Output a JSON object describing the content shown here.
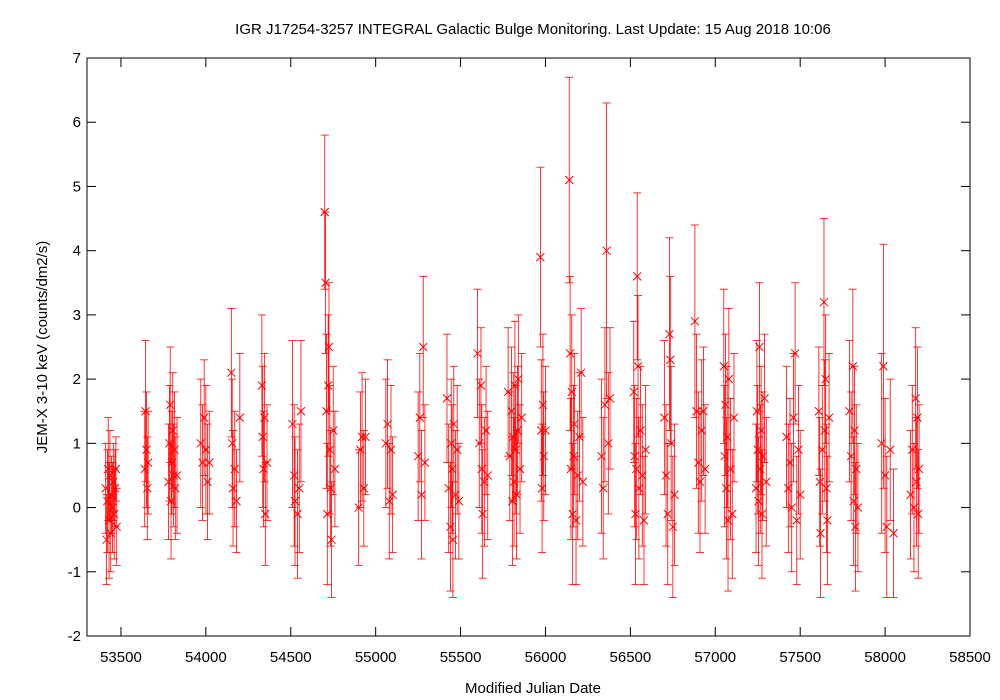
{
  "chart_data": {
    "type": "scatter",
    "title": "IGR J17254-3257   INTEGRAL Galactic Bulge Monitoring.  Last Update: 15 Aug 2018 10:06",
    "xlabel": "Modified Julian Date",
    "ylabel": "JEM-X 3-10 keV (counts/dm2/s)",
    "xlim": [
      53300,
      58500
    ],
    "ylim": [
      -2,
      7
    ],
    "xticks": [
      53500,
      54000,
      54500,
      55000,
      55500,
      56000,
      56500,
      57000,
      57500,
      58000,
      58500
    ],
    "yticks": [
      -2,
      -1,
      0,
      1,
      2,
      3,
      4,
      5,
      6,
      7
    ],
    "grid": false,
    "marker": "x",
    "error_bars": true,
    "colors": {
      "series": "#ff0000",
      "axes": "#000000"
    },
    "series": [
      {
        "points": [
          [
            53410,
            0.3,
            0.7
          ],
          [
            53415,
            -0.5,
            0.7
          ],
          [
            53420,
            0.1,
            0.8
          ],
          [
            53425,
            0.6,
            0.8
          ],
          [
            53430,
            -0.2,
            0.9
          ],
          [
            53435,
            0.5,
            0.7
          ],
          [
            53440,
            -0.4,
            0.6
          ],
          [
            53445,
            0.2,
            0.6
          ],
          [
            53450,
            0.0,
            0.7
          ],
          [
            53455,
            0.4,
            0.6
          ],
          [
            53460,
            -0.1,
            0.7
          ],
          [
            53465,
            0.3,
            0.6
          ],
          [
            53470,
            0.6,
            0.5
          ],
          [
            53475,
            -0.3,
            0.6
          ],
          [
            53640,
            0.6,
            0.9
          ],
          [
            53645,
            1.5,
            1.1
          ],
          [
            53650,
            0.9,
            0.9
          ],
          [
            53655,
            0.3,
            0.8
          ],
          [
            53660,
            0.7,
            0.8
          ],
          [
            53780,
            0.4,
            0.9
          ],
          [
            53785,
            1.0,
            0.9
          ],
          [
            53790,
            1.6,
            0.9
          ],
          [
            53795,
            0.1,
            0.9
          ],
          [
            53800,
            0.7,
            0.8
          ],
          [
            53805,
            1.2,
            0.9
          ],
          [
            53810,
            0.5,
            0.8
          ],
          [
            53815,
            0.9,
            0.9
          ],
          [
            53820,
            0.3,
            0.8
          ],
          [
            53830,
            0.5,
            0.9
          ],
          [
            53970,
            1.0,
            1.0
          ],
          [
            53980,
            0.7,
            0.9
          ],
          [
            53990,
            1.4,
            0.9
          ],
          [
            54000,
            0.9,
            1.0
          ],
          [
            54010,
            0.4,
            0.9
          ],
          [
            54020,
            0.7,
            0.8
          ],
          [
            54150,
            2.1,
            1.0
          ],
          [
            54155,
            1.0,
            1.0
          ],
          [
            54160,
            0.3,
            0.9
          ],
          [
            54170,
            0.6,
            0.9
          ],
          [
            54180,
            0.1,
            0.8
          ],
          [
            54200,
            1.4,
            1.0
          ],
          [
            54330,
            1.9,
            1.1
          ],
          [
            54335,
            1.1,
            1.1
          ],
          [
            54340,
            0.6,
            0.9
          ],
          [
            54345,
            1.4,
            1.0
          ],
          [
            54350,
            -0.1,
            0.8
          ],
          [
            54360,
            0.7,
            0.9
          ],
          [
            54510,
            1.3,
            1.3
          ],
          [
            54520,
            0.5,
            1.1
          ],
          [
            54525,
            0.1,
            1.0
          ],
          [
            54540,
            -0.1,
            1.0
          ],
          [
            54550,
            0.3,
            1.0
          ],
          [
            54560,
            1.5,
            1.1
          ],
          [
            54700,
            4.6,
            1.2
          ],
          [
            54705,
            3.5,
            1.1
          ],
          [
            54710,
            1.5,
            1.2
          ],
          [
            54715,
            -0.1,
            1.1
          ],
          [
            54720,
            1.9,
            1.1
          ],
          [
            54725,
            2.5,
            1.0
          ],
          [
            54730,
            0.9,
            1.0
          ],
          [
            54735,
            0.3,
            0.9
          ],
          [
            54740,
            -0.5,
            0.9
          ],
          [
            54750,
            1.2,
            1.0
          ],
          [
            54760,
            0.6,
            0.9
          ],
          [
            54900,
            0.0,
            0.9
          ],
          [
            54910,
            0.9,
            0.9
          ],
          [
            54920,
            1.1,
            1.0
          ],
          [
            54930,
            0.3,
            0.9
          ],
          [
            54940,
            1.1,
            0.9
          ],
          [
            55060,
            1.0,
            1.0
          ],
          [
            55070,
            1.3,
            1.0
          ],
          [
            55080,
            0.1,
            0.9
          ],
          [
            55090,
            0.9,
            1.0
          ],
          [
            55100,
            0.2,
            0.9
          ],
          [
            55250,
            0.8,
            1.0
          ],
          [
            55260,
            1.4,
            1.0
          ],
          [
            55270,
            0.2,
            1.0
          ],
          [
            55280,
            2.5,
            1.1
          ],
          [
            55290,
            0.7,
            0.9
          ],
          [
            55420,
            1.7,
            1.0
          ],
          [
            55430,
            0.3,
            1.0
          ],
          [
            55440,
            -0.3,
            1.0
          ],
          [
            55445,
            1.0,
            1.0
          ],
          [
            55450,
            0.6,
            1.0
          ],
          [
            55455,
            -0.5,
            0.9
          ],
          [
            55460,
            1.3,
            0.9
          ],
          [
            55470,
            0.2,
            1.0
          ],
          [
            55480,
            0.9,
            1.0
          ],
          [
            55490,
            0.1,
            0.9
          ],
          [
            55600,
            2.4,
            1.0
          ],
          [
            55610,
            1.0,
            1.0
          ],
          [
            55620,
            1.9,
            0.9
          ],
          [
            55625,
            0.6,
            1.0
          ],
          [
            55630,
            -0.1,
            1.0
          ],
          [
            55640,
            0.4,
            1.0
          ],
          [
            55650,
            1.2,
            1.0
          ],
          [
            55660,
            0.5,
            1.0
          ],
          [
            55780,
            1.8,
            1.0
          ],
          [
            55790,
            0.8,
            1.0
          ],
          [
            55800,
            1.5,
            1.0
          ],
          [
            55805,
            0.1,
            1.0
          ],
          [
            55810,
            1.1,
            1.0
          ],
          [
            55815,
            0.4,
            1.0
          ],
          [
            55820,
            1.9,
            1.0
          ],
          [
            55825,
            0.9,
            1.0
          ],
          [
            55830,
            0.2,
            1.0
          ],
          [
            55835,
            1.2,
            1.0
          ],
          [
            55840,
            2.0,
            1.0
          ],
          [
            55850,
            0.6,
            1.0
          ],
          [
            55860,
            1.4,
            1.0
          ],
          [
            55970,
            3.9,
            1.4
          ],
          [
            55975,
            1.2,
            1.1
          ],
          [
            55980,
            0.3,
            1.0
          ],
          [
            55985,
            1.6,
            1.1
          ],
          [
            55990,
            0.8,
            1.0
          ],
          [
            56000,
            1.2,
            1.0
          ],
          [
            56140,
            5.1,
            1.6
          ],
          [
            56145,
            2.4,
            1.2
          ],
          [
            56150,
            0.6,
            1.1
          ],
          [
            56155,
            1.8,
            1.2
          ],
          [
            56160,
            -0.1,
            1.1
          ],
          [
            56165,
            0.8,
            1.1
          ],
          [
            56170,
            1.3,
            1.1
          ],
          [
            56180,
            -0.2,
            1.0
          ],
          [
            56190,
            0.5,
            1.0
          ],
          [
            56200,
            1.1,
            1.0
          ],
          [
            56210,
            2.1,
            1.0
          ],
          [
            56220,
            0.4,
            1.0
          ],
          [
            56330,
            0.8,
            1.2
          ],
          [
            56340,
            0.3,
            1.1
          ],
          [
            56350,
            1.6,
            1.2
          ],
          [
            56360,
            4.0,
            2.3
          ],
          [
            56370,
            1.0,
            1.1
          ],
          [
            56380,
            1.7,
            1.1
          ],
          [
            56520,
            1.8,
            1.1
          ],
          [
            56525,
            0.8,
            1.1
          ],
          [
            56530,
            -0.1,
            1.1
          ],
          [
            56535,
            0.6,
            1.1
          ],
          [
            56540,
            3.6,
            1.3
          ],
          [
            56545,
            2.2,
            1.1
          ],
          [
            56550,
            0.3,
            1.1
          ],
          [
            56560,
            1.2,
            1.0
          ],
          [
            56570,
            0.5,
            1.1
          ],
          [
            56580,
            -0.2,
            1.0
          ],
          [
            56590,
            0.9,
            1.0
          ],
          [
            56700,
            1.4,
            1.2
          ],
          [
            56710,
            0.5,
            1.1
          ],
          [
            56720,
            -0.1,
            1.1
          ],
          [
            56730,
            2.7,
            1.5
          ],
          [
            56735,
            2.3,
            1.3
          ],
          [
            56740,
            1.0,
            1.2
          ],
          [
            56750,
            -0.3,
            1.1
          ],
          [
            56760,
            0.2,
            1.1
          ],
          [
            56880,
            2.9,
            1.5
          ],
          [
            56890,
            1.5,
            1.2
          ],
          [
            56900,
            0.7,
            1.1
          ],
          [
            56910,
            0.4,
            1.1
          ],
          [
            56920,
            1.2,
            1.1
          ],
          [
            56930,
            1.5,
            1.0
          ],
          [
            56940,
            0.6,
            1.0
          ],
          [
            57050,
            2.2,
            1.2
          ],
          [
            57055,
            0.8,
            1.1
          ],
          [
            57060,
            1.6,
            1.1
          ],
          [
            57065,
            0.3,
            1.1
          ],
          [
            57070,
            1.1,
            1.1
          ],
          [
            57075,
            -0.2,
            1.1
          ],
          [
            57080,
            2.0,
            1.1
          ],
          [
            57090,
            0.6,
            1.1
          ],
          [
            57100,
            -0.1,
            1.0
          ],
          [
            57110,
            1.4,
            1.0
          ],
          [
            57240,
            0.3,
            1.0
          ],
          [
            57245,
            1.5,
            1.1
          ],
          [
            57250,
            0.9,
            1.0
          ],
          [
            57255,
            0.1,
            1.0
          ],
          [
            57260,
            2.5,
            1.0
          ],
          [
            57265,
            0.6,
            1.0
          ],
          [
            57270,
            1.2,
            1.0
          ],
          [
            57275,
            -0.1,
            1.0
          ],
          [
            57280,
            0.8,
            1.0
          ],
          [
            57290,
            1.7,
            1.0
          ],
          [
            57300,
            0.4,
            1.0
          ],
          [
            57420,
            1.1,
            1.1
          ],
          [
            57430,
            0.3,
            1.0
          ],
          [
            57440,
            0.7,
            1.0
          ],
          [
            57450,
            0.0,
            1.0
          ],
          [
            57460,
            1.4,
            1.0
          ],
          [
            57470,
            2.4,
            1.1
          ],
          [
            57480,
            -0.2,
            1.0
          ],
          [
            57490,
            0.9,
            1.0
          ],
          [
            57500,
            0.2,
            1.0
          ],
          [
            57610,
            1.5,
            1.0
          ],
          [
            57615,
            0.4,
            1.0
          ],
          [
            57620,
            -0.4,
            1.0
          ],
          [
            57630,
            0.9,
            1.0
          ],
          [
            57640,
            3.2,
            1.3
          ],
          [
            57645,
            1.2,
            1.1
          ],
          [
            57650,
            2.0,
            1.0
          ],
          [
            57655,
            0.3,
            1.0
          ],
          [
            57660,
            -0.2,
            1.0
          ],
          [
            57670,
            1.4,
            1.0
          ],
          [
            57790,
            1.5,
            1.1
          ],
          [
            57800,
            0.8,
            1.0
          ],
          [
            57810,
            2.2,
            1.2
          ],
          [
            57815,
            0.1,
            1.0
          ],
          [
            57820,
            1.2,
            1.0
          ],
          [
            57825,
            -0.3,
            1.0
          ],
          [
            57830,
            0.6,
            1.0
          ],
          [
            57840,
            0.0,
            1.0
          ],
          [
            57980,
            1.0,
            1.4
          ],
          [
            57990,
            2.2,
            1.9
          ],
          [
            58000,
            0.5,
            1.2
          ],
          [
            58010,
            -0.3,
            1.1
          ],
          [
            58030,
            0.9,
            1.1
          ],
          [
            58050,
            -0.4,
            1.0
          ],
          [
            58150,
            0.2,
            1.0
          ],
          [
            58160,
            0.9,
            1.0
          ],
          [
            58170,
            0.0,
            1.0
          ],
          [
            58180,
            1.7,
            1.1
          ],
          [
            58185,
            0.4,
            1.0
          ],
          [
            58190,
            1.4,
            1.1
          ],
          [
            58195,
            -0.1,
            1.0
          ],
          [
            58200,
            0.6,
            1.0
          ]
        ]
      }
    ]
  }
}
